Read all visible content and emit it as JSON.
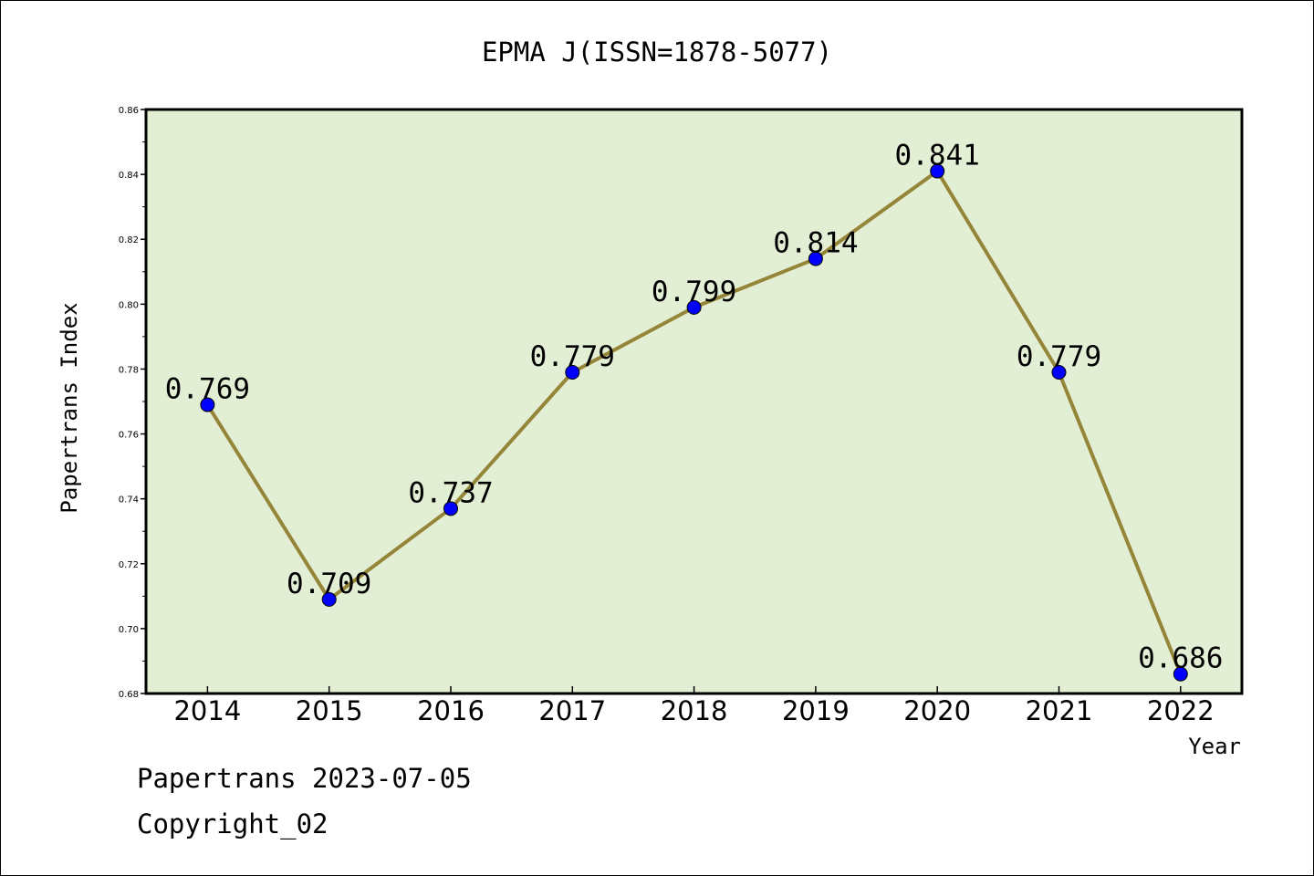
{
  "chart_data": {
    "type": "line",
    "title": "EPMA J(ISSN=1878-5077)",
    "xlabel": "Year",
    "ylabel": "Papertrans Index",
    "categories": [
      "2014",
      "2015",
      "2016",
      "2017",
      "2018",
      "2019",
      "2020",
      "2021",
      "2022"
    ],
    "series": [
      {
        "values": [
          0.769,
          0.709,
          0.737,
          0.779,
          0.799,
          0.814,
          0.841,
          0.779,
          0.686
        ],
        "labels": [
          "0.769",
          "0.709",
          "0.737",
          "0.779",
          "0.799",
          "0.814",
          "0.841",
          "0.779",
          "0.686"
        ]
      }
    ],
    "ylim": [
      0.68,
      0.86
    ],
    "yticks": [
      "0.68",
      "0.70",
      "0.72",
      "0.74",
      "0.76",
      "0.78",
      "0.80",
      "0.82",
      "0.84",
      "0.86"
    ],
    "grid": false,
    "colors": {
      "plot_background": "#e2efd4",
      "line": "#948539",
      "marker": "#0000ff"
    }
  },
  "footer": {
    "line1": "Papertrans 2023-07-05",
    "line2": "Copyright_02"
  }
}
